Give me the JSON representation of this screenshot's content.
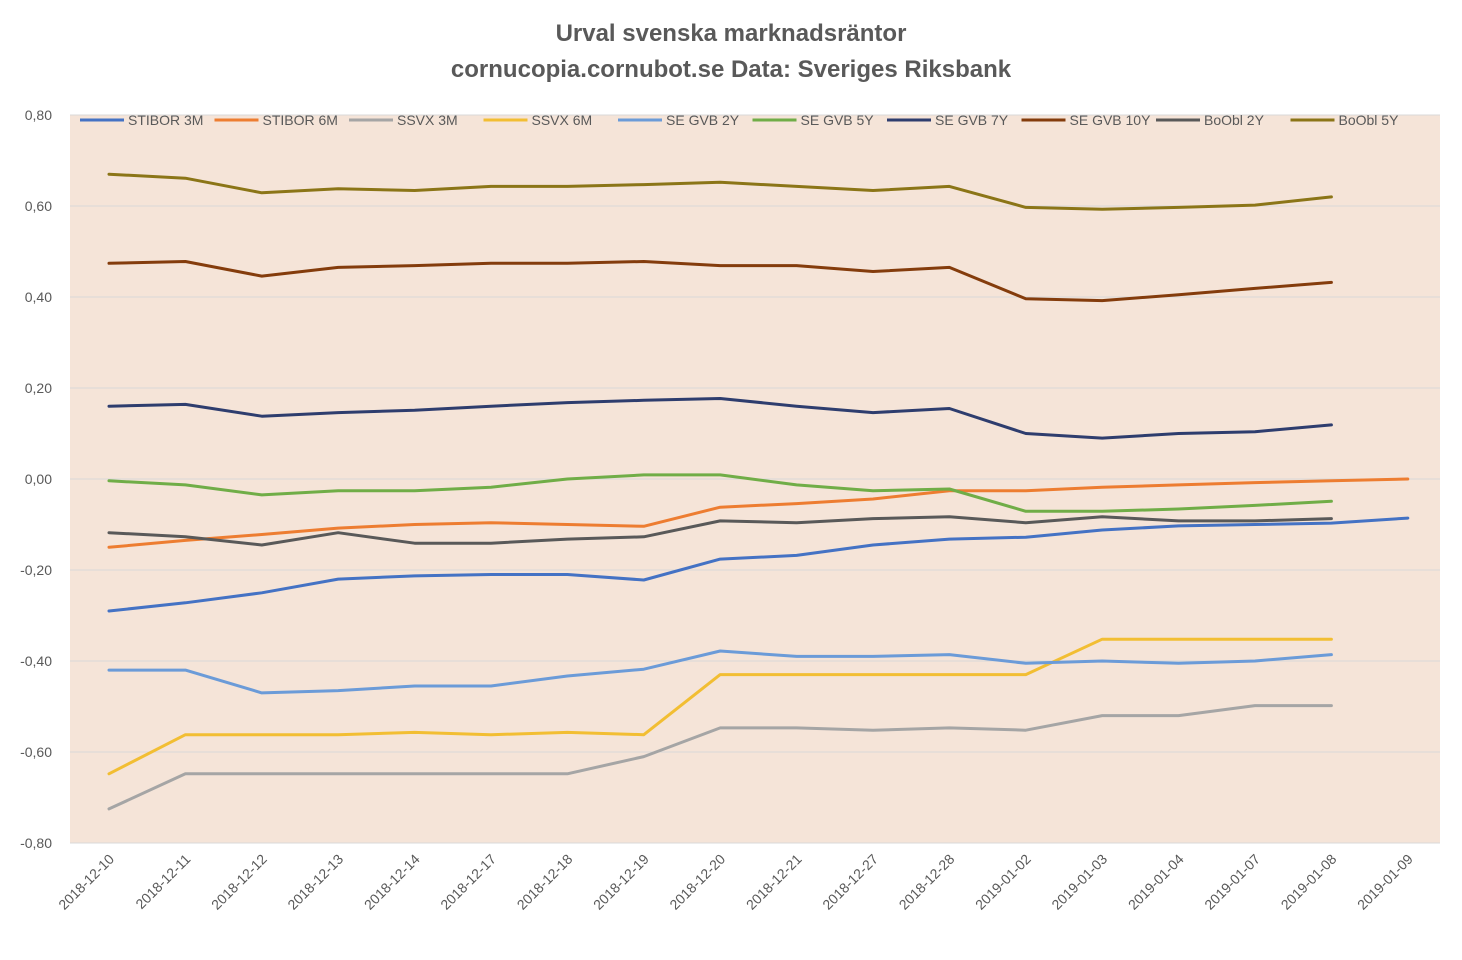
{
  "chart_data": {
    "type": "line",
    "title": "Urval svenska marknadsräntor",
    "subtitle": "cornucopia.cornubot.se Data: Sveriges Riksbank",
    "xlabel": "",
    "ylabel": "",
    "ylim": [
      -0.8,
      0.8
    ],
    "y_ticks": [
      "0,80",
      "0,60",
      "0,40",
      "0,20",
      "0,00",
      "-0,20",
      "-0,40",
      "-0,60",
      "-0,80"
    ],
    "y_tick_values": [
      0.8,
      0.6,
      0.4,
      0.2,
      0.0,
      -0.2,
      -0.4,
      -0.6,
      -0.8
    ],
    "grid": true,
    "legend_position": "top",
    "plot_background": "#F5E4D8",
    "categories": [
      "2018-12-10",
      "2018-12-11",
      "2018-12-12",
      "2018-12-13",
      "2018-12-14",
      "2018-12-17",
      "2018-12-18",
      "2018-12-19",
      "2018-12-20",
      "2018-12-21",
      "2018-12-27",
      "2018-12-28",
      "2019-01-02",
      "2019-01-03",
      "2019-01-04",
      "2019-01-07",
      "2019-01-08",
      "2019-01-09"
    ],
    "series": [
      {
        "name": "STIBOR 3M",
        "color": "#4472C4",
        "values": [
          -0.29,
          -0.272,
          -0.25,
          -0.22,
          -0.213,
          -0.21,
          -0.21,
          -0.222,
          -0.176,
          -0.168,
          -0.145,
          -0.132,
          -0.128,
          -0.112,
          -0.103,
          -0.1,
          -0.097,
          -0.086
        ]
      },
      {
        "name": "STIBOR 6M",
        "color": "#ED7D31",
        "values": [
          -0.15,
          -0.135,
          -0.122,
          -0.108,
          -0.1,
          -0.096,
          -0.1,
          -0.104,
          -0.062,
          -0.054,
          -0.044,
          -0.026,
          -0.026,
          -0.018,
          -0.013,
          -0.008,
          -0.004,
          0.0
        ]
      },
      {
        "name": "SSVX 3M",
        "color": "#A5A5A5",
        "values": [
          -0.725,
          -0.648,
          -0.648,
          -0.648,
          -0.648,
          -0.648,
          -0.648,
          -0.61,
          -0.547,
          -0.547,
          -0.552,
          -0.547,
          -0.552,
          -0.52,
          -0.52,
          -0.498,
          -0.498,
          null
        ]
      },
      {
        "name": "SSVX 6M",
        "color": "#F2BE33",
        "values": [
          -0.648,
          -0.562,
          -0.562,
          -0.562,
          -0.557,
          -0.562,
          -0.557,
          -0.562,
          -0.43,
          -0.43,
          -0.43,
          -0.43,
          -0.43,
          -0.352,
          -0.352,
          -0.352,
          -0.352,
          null
        ]
      },
      {
        "name": "SE GVB 2Y",
        "color": "#6B9BD8",
        "values": [
          -0.42,
          -0.42,
          -0.47,
          -0.465,
          -0.455,
          -0.455,
          -0.433,
          -0.418,
          -0.378,
          -0.39,
          -0.39,
          -0.386,
          -0.405,
          -0.4,
          -0.405,
          -0.4,
          -0.386,
          null
        ]
      },
      {
        "name": "SE GVB 5Y",
        "color": "#70AD47",
        "values": [
          -0.004,
          -0.013,
          -0.035,
          -0.026,
          -0.026,
          -0.018,
          0.0,
          0.009,
          0.009,
          -0.013,
          -0.026,
          -0.022,
          -0.071,
          -0.071,
          -0.066,
          -0.058,
          -0.049,
          null
        ]
      },
      {
        "name": "SE GVB 7Y",
        "color": "#2E3D6E",
        "values": [
          0.16,
          0.164,
          0.138,
          0.146,
          0.151,
          0.16,
          0.168,
          0.173,
          0.177,
          0.16,
          0.146,
          0.155,
          0.1,
          0.09,
          0.1,
          0.104,
          0.119,
          null
        ]
      },
      {
        "name": "SE GVB 10Y",
        "color": "#843C0C",
        "values": [
          0.474,
          0.478,
          0.446,
          0.465,
          0.469,
          0.474,
          0.474,
          0.478,
          0.469,
          0.469,
          0.456,
          0.465,
          0.396,
          0.392,
          0.405,
          0.419,
          0.432,
          null
        ]
      },
      {
        "name": "BoObl 2Y",
        "color": "#595959",
        "values": [
          -0.118,
          -0.127,
          -0.145,
          -0.118,
          -0.141,
          -0.141,
          -0.132,
          -0.127,
          -0.092,
          -0.096,
          -0.087,
          -0.083,
          -0.096,
          -0.083,
          -0.092,
          -0.092,
          -0.087,
          null
        ]
      },
      {
        "name": "BoObl 5Y",
        "color": "#8B7517",
        "values": [
          0.67,
          0.661,
          0.629,
          0.638,
          0.634,
          0.643,
          0.643,
          0.647,
          0.652,
          0.643,
          0.634,
          0.643,
          0.597,
          0.593,
          0.597,
          0.602,
          0.62,
          null
        ]
      }
    ]
  }
}
